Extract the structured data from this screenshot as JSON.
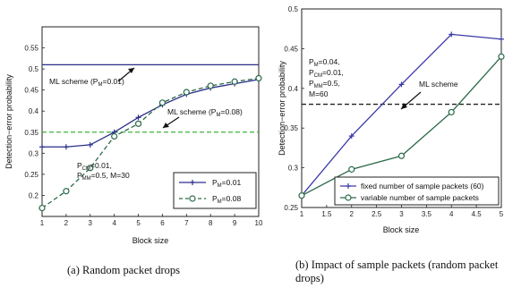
{
  "chart_data": [
    {
      "type": "line",
      "caption": "(a) Random packet drops",
      "xlabel": "Block size",
      "ylabel": "Detection−error probability",
      "xlim": [
        1,
        10
      ],
      "ylim": [
        0.15,
        0.6
      ],
      "xticks": [
        1,
        2,
        3,
        4,
        5,
        6,
        7,
        8,
        9,
        10
      ],
      "yticks": [
        0.15,
        0.2,
        0.25,
        0.3,
        0.35,
        0.4,
        0.45,
        0.5,
        0.55
      ],
      "ytick_labels": [
        "",
        "0.2",
        "0.25",
        "0.3",
        "0.35",
        "0.4",
        "0.45",
        "0.5",
        "0.55"
      ],
      "x": [
        1,
        2,
        3,
        4,
        5,
        6,
        7,
        8,
        9,
        10
      ],
      "series": [
        {
          "name": "P_M=0.01",
          "legend_label": "P",
          "legend_sub": "M",
          "legend_suffix": "=0.01",
          "values": [
            0.315,
            0.315,
            0.32,
            0.35,
            0.385,
            0.415,
            0.44,
            0.455,
            0.465,
            0.475
          ],
          "color": "#2b2f8a",
          "marker": "plus",
          "dash": "solid"
        },
        {
          "name": "P_M=0.08",
          "legend_label": "P",
          "legend_sub": "M",
          "legend_suffix": "=0.08",
          "values": [
            0.17,
            0.21,
            0.265,
            0.34,
            0.37,
            0.42,
            0.445,
            0.46,
            0.47,
            0.478
          ],
          "color": "#2a6a48",
          "marker": "circle",
          "dash": "dashed"
        }
      ],
      "reference_lines": [
        {
          "y": 0.51,
          "color": "#2b2f8a",
          "dash": "solid"
        },
        {
          "y": 0.35,
          "color": "#3fb53f",
          "dash": "dashed"
        }
      ],
      "annotations": [
        {
          "text": "ML scheme (P",
          "sub": "M",
          "tail": "=0.01)"
        },
        {
          "text": "ML scheme (P",
          "sub": "M",
          "tail": "=0.08)"
        },
        {
          "lines": [
            {
              "text": "P",
              "sub": "CM",
              "tail": "=0.01,"
            },
            {
              "text": "P",
              "sub": "MM",
              "tail": "=0.5, M=30"
            }
          ]
        }
      ],
      "legend": "bottom-right"
    },
    {
      "type": "line",
      "caption": "(b) Impact of sample packets (random packet drops)",
      "caption_lines": [
        "(b)  Impact of sample packets (random packet",
        "drops)"
      ],
      "xlabel": "Block size",
      "ylabel": "Detection−error probability",
      "xlim": [
        1,
        5
      ],
      "ylim": [
        0.25,
        0.5
      ],
      "xticks": [
        1,
        1.5,
        2,
        2.5,
        3,
        3.5,
        4,
        4.5,
        5
      ],
      "xtick_labels": [
        "1",
        "1.5",
        "2",
        "2.5",
        "3",
        "3.5",
        "4",
        "4.5",
        "5"
      ],
      "yticks": [
        0.25,
        0.3,
        0.35,
        0.4,
        0.45,
        0.5
      ],
      "ytick_labels": [
        "0.25",
        "0.3",
        "0.35",
        "0.4",
        "0.45",
        "0.5"
      ],
      "x": [
        1,
        2,
        3,
        4,
        5
      ],
      "series": [
        {
          "name": "fixed number of sample packets (60)",
          "values": [
            0.265,
            0.34,
            0.405,
            0.468,
            0.462
          ],
          "color": "#3a3aa8",
          "marker": "plus",
          "dash": "solid"
        },
        {
          "name": "variable number of sample packets",
          "values": [
            0.265,
            0.298,
            0.315,
            0.37,
            0.44
          ],
          "color": "#2a6a48",
          "marker": "circle",
          "dash": "solid"
        }
      ],
      "reference_lines": [
        {
          "y": 0.38,
          "color": "#222222",
          "dash": "dashed"
        }
      ],
      "annotations": [
        {
          "text": "ML scheme"
        },
        {
          "lines": [
            {
              "text": "P",
              "sub": "M",
              "tail": "=0.04,"
            },
            {
              "text": "P",
              "sub": "CM",
              "tail": "=0.01,"
            },
            {
              "text": "P",
              "sub": "MM",
              "tail": "=0.5,"
            },
            {
              "text": "M=60"
            }
          ]
        }
      ],
      "legend": "bottom-right"
    }
  ]
}
